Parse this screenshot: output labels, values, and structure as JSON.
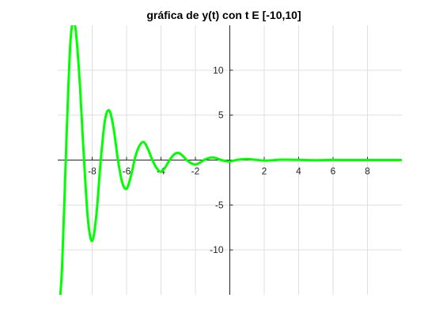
{
  "chart_data": {
    "type": "line",
    "title": "gráfica de y(t) con t E [-10,10]",
    "xlabel": "",
    "ylabel": "",
    "xlim": [
      -10,
      10
    ],
    "ylim": [
      -15,
      15
    ],
    "grid": true,
    "axes_through_origin": true,
    "x_ticks": [
      -8,
      -6,
      -4,
      -2,
      2,
      4,
      6,
      8
    ],
    "x_tick_labels": [
      "-8",
      "-6",
      "-4",
      "-2",
      "2",
      "4",
      "6",
      "8"
    ],
    "y_ticks": [
      10,
      5,
      -5,
      -10
    ],
    "y_tick_labels": [
      "10",
      "5",
      "-5",
      "-10"
    ],
    "series": [
      {
        "color": "#00ff00",
        "x": [
          -10,
          -9.75,
          -9.5,
          -9.25,
          -9,
          -8.75,
          -8.5,
          -8.25,
          -8,
          -7.75,
          -7.5,
          -7.25,
          -7,
          -6.75,
          -6.5,
          -6.25,
          -6,
          -5.75,
          -5.5,
          -5.25,
          -5,
          -4.75,
          -4.5,
          -4.25,
          -4,
          -3.75,
          -3.5,
          -3.25,
          -3,
          -2.75,
          -2.5,
          -2.25,
          -2,
          -1.75,
          -1.5,
          -1.25,
          -1,
          -0.75,
          -0.5,
          -0.25,
          0,
          0.5,
          1,
          1.5,
          2,
          2.5,
          3,
          4,
          5,
          6,
          7,
          8,
          9,
          10
        ],
        "y": [
          -18.5,
          -12,
          2,
          13.5,
          15,
          9.5,
          1,
          -6.5,
          -9,
          -6,
          0,
          4.5,
          5.5,
          3.5,
          0,
          -2.5,
          -3.2,
          -1.8,
          0.3,
          1.6,
          2,
          1.2,
          0,
          -0.9,
          -1.3,
          -0.8,
          0,
          0.6,
          0.8,
          0.5,
          0,
          -0.35,
          -0.5,
          -0.3,
          0,
          0.2,
          0.3,
          0.18,
          0,
          -0.1,
          -0.15,
          0.05,
          0.12,
          0.03,
          -0.06,
          -0.02,
          0.04,
          0.02,
          -0.02,
          0.01,
          0,
          0,
          0,
          0
        ]
      }
    ]
  }
}
